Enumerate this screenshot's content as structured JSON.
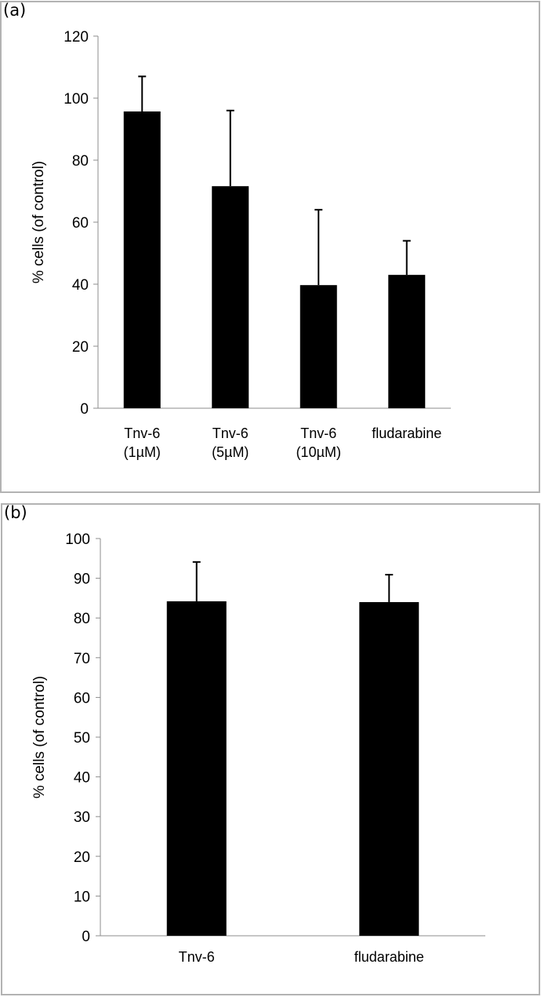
{
  "chart_data": [
    {
      "panel_label": "(a)",
      "type": "bar",
      "title": "",
      "xlabel": "",
      "ylabel": "% cells (of control)",
      "ylim": [
        0,
        120
      ],
      "yticks": [
        0,
        20,
        40,
        60,
        80,
        100,
        120
      ],
      "grid": false,
      "categories": [
        [
          "Tnv-6",
          "(1µM)"
        ],
        [
          "Tnv-6",
          "(5µM)"
        ],
        [
          "Tnv-6",
          "(10µM)"
        ],
        [
          "fludarabine"
        ]
      ],
      "values": [
        95.7,
        71.6,
        39.7,
        43.0
      ],
      "error_upper": [
        107,
        96,
        64,
        54
      ],
      "bar_color": "#000000"
    },
    {
      "panel_label": "(b)",
      "type": "bar",
      "title": "",
      "xlabel": "",
      "ylabel": "% cells (of control)",
      "ylim": [
        0,
        100
      ],
      "yticks": [
        0,
        10,
        20,
        30,
        40,
        50,
        60,
        70,
        80,
        90,
        100
      ],
      "grid": false,
      "categories": [
        [
          "Tnv-6"
        ],
        [
          "fludarabine"
        ]
      ],
      "values": [
        84.2,
        84.0
      ],
      "error_upper": [
        94.1,
        90.9
      ],
      "bar_color": "#000000"
    }
  ]
}
